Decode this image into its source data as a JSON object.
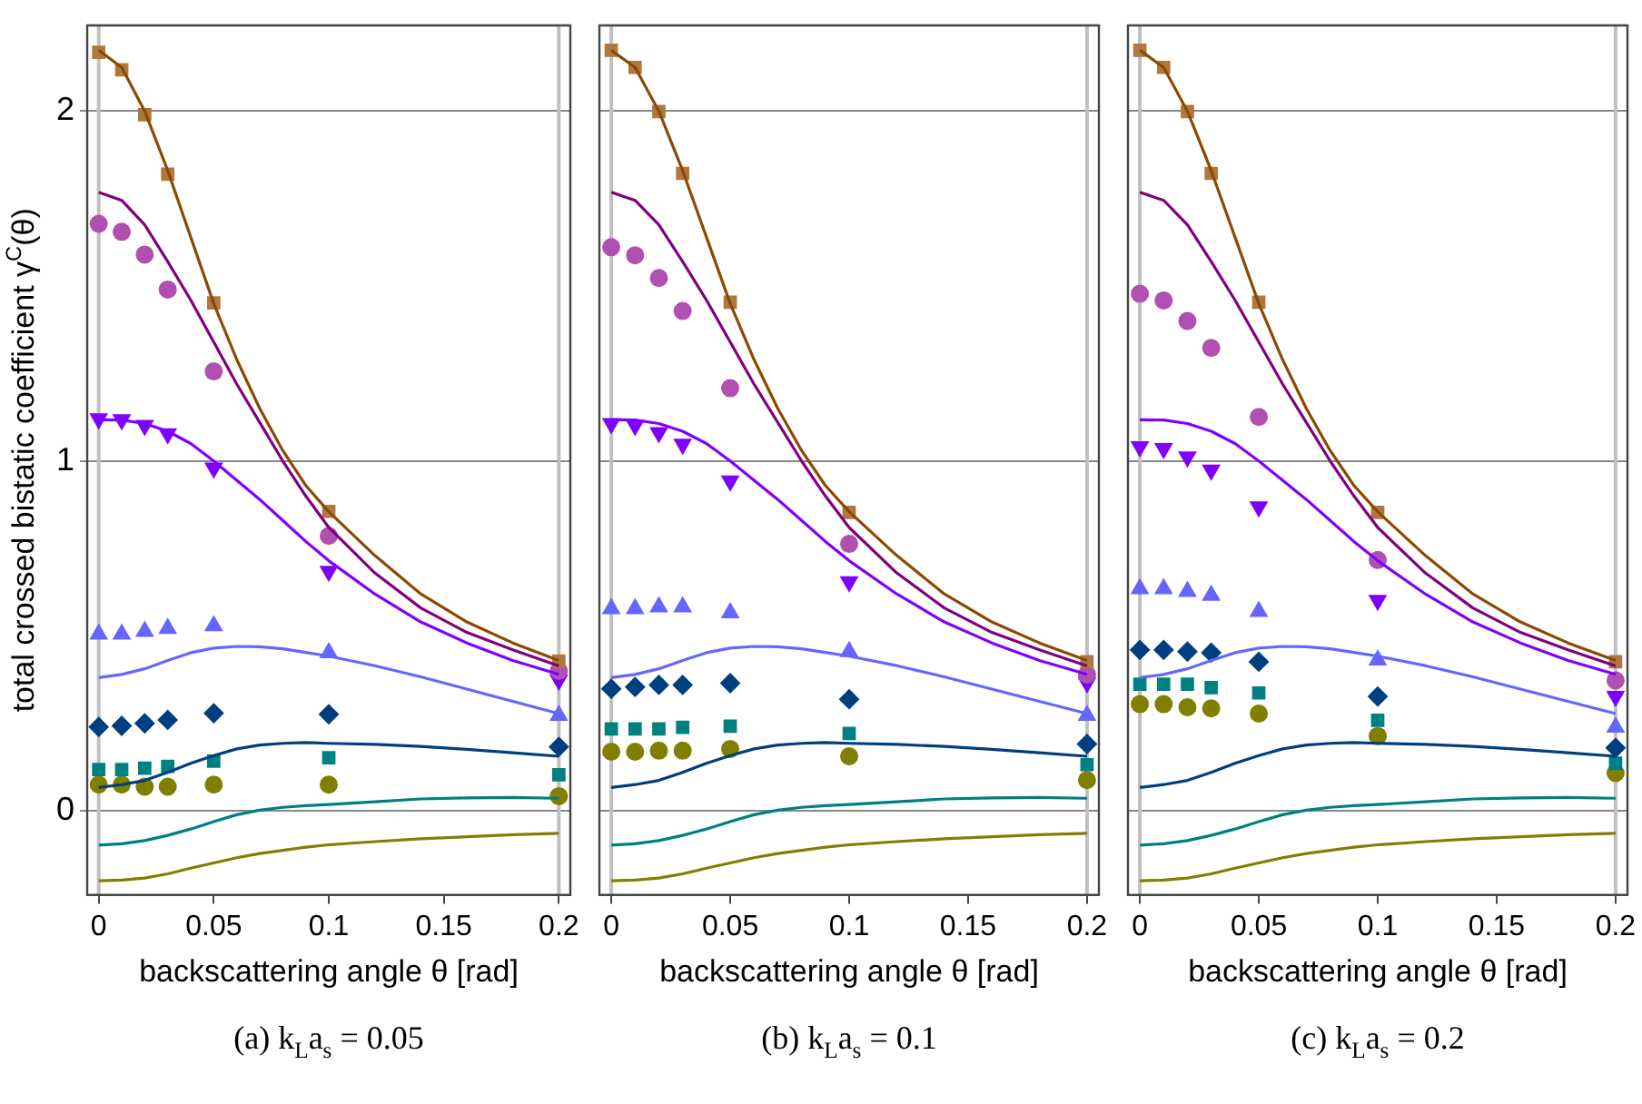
{
  "chart_data": [
    {
      "type": "line",
      "title": "(a) k$_{L}$a$_{s}$ = 0.05",
      "xlabel": "backscattering angle θ [rad]",
      "ylabel": "total crossed bistatic coefficient γ$^{C}$(θ)",
      "xlim": [
        -0.005,
        0.205
      ],
      "xticks": [
        0,
        0.05,
        0.1,
        0.15,
        0.2
      ],
      "ylim": [
        -0.24,
        2.245
      ],
      "yticks": [
        0,
        1,
        2
      ],
      "grid": "y",
      "legend": false,
      "ref_lines": [
        {
          "axis": "x",
          "value": 0,
          "color": "#c0c0c0"
        },
        {
          "axis": "x",
          "value": 0.2,
          "color": "#c0c0c0"
        }
      ],
      "series": [
        {
          "type": "line",
          "color": "#8b4a00",
          "marker": "none",
          "x": [
            0,
            0.01,
            0.02,
            0.03,
            0.04,
            0.05,
            0.06,
            0.07,
            0.08,
            0.09,
            0.1,
            0.12,
            0.14,
            0.16,
            0.18,
            0.2
          ],
          "values": [
            2.174,
            2.125,
            2.0,
            1.83,
            1.64,
            1.45,
            1.29,
            1.15,
            1.03,
            0.93,
            0.855,
            0.73,
            0.62,
            0.54,
            0.48,
            0.43
          ]
        },
        {
          "type": "line",
          "color": "#800080",
          "marker": "none",
          "x": [
            0,
            0.01,
            0.02,
            0.03,
            0.04,
            0.05,
            0.06,
            0.07,
            0.08,
            0.09,
            0.1,
            0.12,
            0.14,
            0.16,
            0.18,
            0.2
          ],
          "values": [
            1.768,
            1.745,
            1.675,
            1.57,
            1.46,
            1.34,
            1.22,
            1.11,
            1.0,
            0.9,
            0.81,
            0.68,
            0.58,
            0.51,
            0.46,
            0.414
          ]
        },
        {
          "type": "line",
          "color": "#8000ff",
          "marker": "none",
          "x": [
            0,
            0.01,
            0.02,
            0.03,
            0.04,
            0.05,
            0.06,
            0.07,
            0.08,
            0.09,
            0.1,
            0.12,
            0.14,
            0.16,
            0.18,
            0.2
          ],
          "values": [
            1.118,
            1.117,
            1.107,
            1.085,
            1.05,
            1.0,
            0.945,
            0.89,
            0.83,
            0.77,
            0.715,
            0.62,
            0.54,
            0.48,
            0.43,
            0.39
          ]
        },
        {
          "type": "line",
          "color": "#6666ff",
          "marker": "none",
          "x": [
            0,
            0.01,
            0.02,
            0.03,
            0.04,
            0.05,
            0.06,
            0.07,
            0.08,
            0.09,
            0.1,
            0.12,
            0.14,
            0.16,
            0.18,
            0.2
          ],
          "values": [
            0.381,
            0.39,
            0.406,
            0.43,
            0.452,
            0.465,
            0.47,
            0.469,
            0.463,
            0.453,
            0.442,
            0.415,
            0.383,
            0.348,
            0.313,
            0.278
          ]
        },
        {
          "type": "line",
          "color": "#003f7f",
          "marker": "none",
          "x": [
            0,
            0.01,
            0.02,
            0.03,
            0.04,
            0.05,
            0.06,
            0.07,
            0.08,
            0.09,
            0.1,
            0.12,
            0.14,
            0.16,
            0.18,
            0.2
          ],
          "values": [
            0.067,
            0.075,
            0.087,
            0.11,
            0.136,
            0.158,
            0.177,
            0.188,
            0.193,
            0.195,
            0.193,
            0.19,
            0.184,
            0.176,
            0.166,
            0.156
          ]
        },
        {
          "type": "line",
          "color": "#008080",
          "marker": "none",
          "x": [
            0,
            0.01,
            0.02,
            0.03,
            0.04,
            0.05,
            0.06,
            0.07,
            0.08,
            0.09,
            0.1,
            0.12,
            0.14,
            0.16,
            0.18,
            0.2
          ],
          "values": [
            -0.098,
            -0.094,
            -0.085,
            -0.07,
            -0.052,
            -0.031,
            -0.011,
            0.002,
            0.01,
            0.015,
            0.018,
            0.026,
            0.034,
            0.037,
            0.038,
            0.036
          ]
        },
        {
          "type": "line",
          "color": "#808000",
          "marker": "none",
          "x": [
            0,
            0.01,
            0.02,
            0.03,
            0.04,
            0.05,
            0.06,
            0.07,
            0.08,
            0.09,
            0.1,
            0.12,
            0.14,
            0.16,
            0.18,
            0.2
          ],
          "values": [
            -0.2,
            -0.198,
            -0.192,
            -0.18,
            -0.164,
            -0.149,
            -0.134,
            -0.122,
            -0.113,
            -0.104,
            -0.097,
            -0.088,
            -0.08,
            -0.074,
            -0.068,
            -0.064
          ]
        },
        {
          "type": "scatter",
          "color": "#b07840",
          "marker": "square",
          "x": [
            0,
            0.01,
            0.02,
            0.03,
            0.05,
            0.1,
            0.2
          ],
          "values": [
            2.168,
            2.118,
            1.99,
            1.82,
            1.452,
            0.856,
            0.428
          ]
        },
        {
          "type": "scatter",
          "color": "#b050b0",
          "marker": "circle",
          "x": [
            0,
            0.01,
            0.02,
            0.03,
            0.05,
            0.1,
            0.2
          ],
          "values": [
            1.678,
            1.655,
            1.59,
            1.49,
            1.256,
            0.786,
            0.4
          ]
        },
        {
          "type": "scatter",
          "color": "#8000ff",
          "marker": "triangle_down",
          "x": [
            0,
            0.01,
            0.02,
            0.03,
            0.05,
            0.1,
            0.2
          ],
          "values": [
            1.121,
            1.118,
            1.102,
            1.078,
            0.98,
            0.685,
            0.374
          ]
        },
        {
          "type": "scatter",
          "color": "#6666ff",
          "marker": "triangle",
          "x": [
            0,
            0.01,
            0.02,
            0.03,
            0.05,
            0.1,
            0.2
          ],
          "values": [
            0.505,
            0.505,
            0.513,
            0.521,
            0.529,
            0.452,
            0.273
          ]
        },
        {
          "type": "scatter",
          "color": "#003f7f",
          "marker": "diamond",
          "x": [
            0,
            0.01,
            0.02,
            0.03,
            0.05,
            0.1,
            0.2
          ],
          "values": [
            0.24,
            0.243,
            0.25,
            0.26,
            0.279,
            0.276,
            0.183
          ]
        },
        {
          "type": "scatter",
          "color": "#008080",
          "marker": "square",
          "x": [
            0,
            0.01,
            0.02,
            0.03,
            0.05,
            0.1,
            0.2
          ],
          "values": [
            0.118,
            0.118,
            0.122,
            0.127,
            0.142,
            0.152,
            0.103
          ]
        },
        {
          "type": "scatter",
          "color": "#808000",
          "marker": "circle",
          "x": [
            0,
            0.01,
            0.02,
            0.03,
            0.05,
            0.1,
            0.2
          ],
          "values": [
            0.075,
            0.075,
            0.069,
            0.069,
            0.075,
            0.075,
            0.042
          ]
        }
      ]
    },
    {
      "type": "line",
      "title": "(b) k$_{L}$a$_{s}$ = 0.1",
      "xlabel": "backscattering angle θ [rad]",
      "xlim": [
        -0.005,
        0.205
      ],
      "xticks": [
        0,
        0.05,
        0.1,
        0.15,
        0.2
      ],
      "ylim": [
        -0.24,
        2.245
      ],
      "yticks": [
        0,
        1,
        2
      ],
      "tick_labels": "x",
      "grid": "y",
      "legend": false,
      "ref_lines": [
        {
          "axis": "x",
          "value": 0,
          "color": "#c0c0c0"
        },
        {
          "axis": "x",
          "value": 0.2,
          "color": "#c0c0c0"
        }
      ],
      "series": [
        {
          "type": "line",
          "color": "#8b4a00",
          "marker": "none",
          "x": [
            0,
            0.01,
            0.02,
            0.03,
            0.04,
            0.05,
            0.06,
            0.07,
            0.08,
            0.09,
            0.1,
            0.12,
            0.14,
            0.16,
            0.18,
            0.2
          ],
          "values": [
            2.174,
            2.125,
            2.0,
            1.83,
            1.64,
            1.45,
            1.29,
            1.15,
            1.03,
            0.93,
            0.855,
            0.73,
            0.62,
            0.54,
            0.48,
            0.43
          ]
        },
        {
          "type": "line",
          "color": "#800080",
          "marker": "none",
          "x": [
            0,
            0.01,
            0.02,
            0.03,
            0.04,
            0.05,
            0.06,
            0.07,
            0.08,
            0.09,
            0.1,
            0.12,
            0.14,
            0.16,
            0.18,
            0.2
          ],
          "values": [
            1.768,
            1.745,
            1.675,
            1.57,
            1.46,
            1.34,
            1.22,
            1.11,
            1.0,
            0.9,
            0.81,
            0.68,
            0.58,
            0.51,
            0.46,
            0.414
          ]
        },
        {
          "type": "line",
          "color": "#8000ff",
          "marker": "none",
          "x": [
            0,
            0.01,
            0.02,
            0.03,
            0.04,
            0.05,
            0.06,
            0.07,
            0.08,
            0.09,
            0.1,
            0.12,
            0.14,
            0.16,
            0.18,
            0.2
          ],
          "values": [
            1.118,
            1.117,
            1.107,
            1.085,
            1.05,
            1.0,
            0.945,
            0.89,
            0.83,
            0.77,
            0.715,
            0.62,
            0.54,
            0.48,
            0.43,
            0.39
          ]
        },
        {
          "type": "line",
          "color": "#6666ff",
          "marker": "none",
          "x": [
            0,
            0.01,
            0.02,
            0.03,
            0.04,
            0.05,
            0.06,
            0.07,
            0.08,
            0.09,
            0.1,
            0.12,
            0.14,
            0.16,
            0.18,
            0.2
          ],
          "values": [
            0.381,
            0.39,
            0.406,
            0.43,
            0.452,
            0.465,
            0.47,
            0.469,
            0.463,
            0.453,
            0.442,
            0.415,
            0.383,
            0.348,
            0.313,
            0.278
          ]
        },
        {
          "type": "line",
          "color": "#003f7f",
          "marker": "none",
          "x": [
            0,
            0.01,
            0.02,
            0.03,
            0.04,
            0.05,
            0.06,
            0.07,
            0.08,
            0.09,
            0.1,
            0.12,
            0.14,
            0.16,
            0.18,
            0.2
          ],
          "values": [
            0.067,
            0.075,
            0.087,
            0.11,
            0.136,
            0.158,
            0.177,
            0.188,
            0.193,
            0.195,
            0.193,
            0.19,
            0.184,
            0.176,
            0.166,
            0.156
          ]
        },
        {
          "type": "line",
          "color": "#008080",
          "marker": "none",
          "x": [
            0,
            0.01,
            0.02,
            0.03,
            0.04,
            0.05,
            0.06,
            0.07,
            0.08,
            0.09,
            0.1,
            0.12,
            0.14,
            0.16,
            0.18,
            0.2
          ],
          "values": [
            -0.098,
            -0.094,
            -0.085,
            -0.07,
            -0.052,
            -0.031,
            -0.011,
            0.002,
            0.01,
            0.015,
            0.018,
            0.026,
            0.034,
            0.037,
            0.038,
            0.036
          ]
        },
        {
          "type": "line",
          "color": "#808000",
          "marker": "none",
          "x": [
            0,
            0.01,
            0.02,
            0.03,
            0.04,
            0.05,
            0.06,
            0.07,
            0.08,
            0.09,
            0.1,
            0.12,
            0.14,
            0.16,
            0.18,
            0.2
          ],
          "values": [
            -0.2,
            -0.198,
            -0.192,
            -0.18,
            -0.164,
            -0.149,
            -0.134,
            -0.122,
            -0.113,
            -0.104,
            -0.097,
            -0.088,
            -0.08,
            -0.074,
            -0.068,
            -0.064
          ]
        },
        {
          "type": "scatter",
          "color": "#b07840",
          "marker": "square",
          "x": [
            0,
            0.01,
            0.02,
            0.03,
            0.05,
            0.1,
            0.2
          ],
          "values": [
            2.174,
            2.125,
            1.999,
            1.822,
            1.454,
            0.853,
            0.426
          ]
        },
        {
          "type": "scatter",
          "color": "#b050b0",
          "marker": "circle",
          "x": [
            0,
            0.01,
            0.02,
            0.03,
            0.05,
            0.1,
            0.2
          ],
          "values": [
            1.611,
            1.588,
            1.523,
            1.429,
            1.208,
            0.763,
            0.39
          ]
        },
        {
          "type": "scatter",
          "color": "#8000ff",
          "marker": "triangle_down",
          "x": [
            0,
            0.01,
            0.02,
            0.03,
            0.05,
            0.1,
            0.2
          ],
          "values": [
            1.107,
            1.102,
            1.081,
            1.048,
            0.943,
            0.655,
            0.366
          ]
        },
        {
          "type": "scatter",
          "color": "#6666ff",
          "marker": "triangle",
          "x": [
            0,
            0.01,
            0.02,
            0.03,
            0.05,
            0.1,
            0.2
          ],
          "values": [
            0.578,
            0.578,
            0.583,
            0.583,
            0.566,
            0.455,
            0.273
          ]
        },
        {
          "type": "scatter",
          "color": "#003f7f",
          "marker": "diamond",
          "x": [
            0,
            0.01,
            0.02,
            0.03,
            0.05,
            0.1,
            0.2
          ],
          "values": [
            0.349,
            0.354,
            0.36,
            0.36,
            0.365,
            0.319,
            0.191
          ]
        },
        {
          "type": "scatter",
          "color": "#008080",
          "marker": "square",
          "x": [
            0,
            0.01,
            0.02,
            0.03,
            0.05,
            0.1,
            0.2
          ],
          "values": [
            0.234,
            0.234,
            0.234,
            0.239,
            0.242,
            0.221,
            0.132
          ]
        },
        {
          "type": "scatter",
          "color": "#808000",
          "marker": "circle",
          "x": [
            0,
            0.01,
            0.02,
            0.03,
            0.05,
            0.1,
            0.2
          ],
          "values": [
            0.169,
            0.169,
            0.172,
            0.172,
            0.177,
            0.156,
            0.088
          ]
        }
      ]
    },
    {
      "type": "line",
      "title": "(c) k$_{L}$a$_{s}$ = 0.2",
      "xlabel": "backscattering angle θ [rad]",
      "xlim": [
        -0.005,
        0.205
      ],
      "xticks": [
        0,
        0.05,
        0.1,
        0.15,
        0.2
      ],
      "ylim": [
        -0.24,
        2.245
      ],
      "yticks": [
        0,
        1,
        2
      ],
      "tick_labels": "x",
      "grid": "y",
      "legend": false,
      "ref_lines": [
        {
          "axis": "x",
          "value": 0,
          "color": "#c0c0c0"
        },
        {
          "axis": "x",
          "value": 0.2,
          "color": "#c0c0c0"
        }
      ],
      "series": [
        {
          "type": "line",
          "color": "#8b4a00",
          "marker": "none",
          "x": [
            0,
            0.01,
            0.02,
            0.03,
            0.04,
            0.05,
            0.06,
            0.07,
            0.08,
            0.09,
            0.1,
            0.12,
            0.14,
            0.16,
            0.18,
            0.2
          ],
          "values": [
            2.174,
            2.125,
            2.0,
            1.83,
            1.64,
            1.45,
            1.29,
            1.15,
            1.03,
            0.93,
            0.855,
            0.73,
            0.62,
            0.54,
            0.48,
            0.43
          ]
        },
        {
          "type": "line",
          "color": "#800080",
          "marker": "none",
          "x": [
            0,
            0.01,
            0.02,
            0.03,
            0.04,
            0.05,
            0.06,
            0.07,
            0.08,
            0.09,
            0.1,
            0.12,
            0.14,
            0.16,
            0.18,
            0.2
          ],
          "values": [
            1.768,
            1.745,
            1.675,
            1.57,
            1.46,
            1.34,
            1.22,
            1.11,
            1.0,
            0.9,
            0.81,
            0.68,
            0.58,
            0.51,
            0.46,
            0.414
          ]
        },
        {
          "type": "line",
          "color": "#8000ff",
          "marker": "none",
          "x": [
            0,
            0.01,
            0.02,
            0.03,
            0.04,
            0.05,
            0.06,
            0.07,
            0.08,
            0.09,
            0.1,
            0.12,
            0.14,
            0.16,
            0.18,
            0.2
          ],
          "values": [
            1.118,
            1.117,
            1.107,
            1.085,
            1.05,
            1.0,
            0.945,
            0.89,
            0.83,
            0.77,
            0.715,
            0.62,
            0.54,
            0.48,
            0.43,
            0.39
          ]
        },
        {
          "type": "line",
          "color": "#6666ff",
          "marker": "none",
          "x": [
            0,
            0.01,
            0.02,
            0.03,
            0.04,
            0.05,
            0.06,
            0.07,
            0.08,
            0.09,
            0.1,
            0.12,
            0.14,
            0.16,
            0.18,
            0.2
          ],
          "values": [
            0.381,
            0.39,
            0.406,
            0.43,
            0.452,
            0.465,
            0.47,
            0.469,
            0.463,
            0.453,
            0.442,
            0.415,
            0.383,
            0.348,
            0.313,
            0.278
          ]
        },
        {
          "type": "line",
          "color": "#003f7f",
          "marker": "none",
          "x": [
            0,
            0.01,
            0.02,
            0.03,
            0.04,
            0.05,
            0.06,
            0.07,
            0.08,
            0.09,
            0.1,
            0.12,
            0.14,
            0.16,
            0.18,
            0.2
          ],
          "values": [
            0.067,
            0.075,
            0.087,
            0.11,
            0.136,
            0.158,
            0.177,
            0.188,
            0.193,
            0.195,
            0.193,
            0.19,
            0.184,
            0.176,
            0.166,
            0.156
          ]
        },
        {
          "type": "line",
          "color": "#008080",
          "marker": "none",
          "x": [
            0,
            0.01,
            0.02,
            0.03,
            0.04,
            0.05,
            0.06,
            0.07,
            0.08,
            0.09,
            0.1,
            0.12,
            0.14,
            0.16,
            0.18,
            0.2
          ],
          "values": [
            -0.098,
            -0.094,
            -0.085,
            -0.07,
            -0.052,
            -0.031,
            -0.011,
            0.002,
            0.01,
            0.015,
            0.018,
            0.026,
            0.034,
            0.037,
            0.038,
            0.036
          ]
        },
        {
          "type": "line",
          "color": "#808000",
          "marker": "none",
          "x": [
            0,
            0.01,
            0.02,
            0.03,
            0.04,
            0.05,
            0.06,
            0.07,
            0.08,
            0.09,
            0.1,
            0.12,
            0.14,
            0.16,
            0.18,
            0.2
          ],
          "values": [
            -0.2,
            -0.198,
            -0.192,
            -0.18,
            -0.164,
            -0.149,
            -0.134,
            -0.122,
            -0.113,
            -0.104,
            -0.097,
            -0.088,
            -0.08,
            -0.074,
            -0.068,
            -0.064
          ]
        },
        {
          "type": "scatter",
          "color": "#b07840",
          "marker": "square",
          "x": [
            0,
            0.01,
            0.02,
            0.03,
            0.05,
            0.1,
            0.2
          ],
          "values": [
            2.174,
            2.125,
            1.999,
            1.822,
            1.454,
            0.853,
            0.426
          ]
        },
        {
          "type": "scatter",
          "color": "#b050b0",
          "marker": "circle",
          "x": [
            0,
            0.01,
            0.02,
            0.03,
            0.05,
            0.1,
            0.2
          ],
          "values": [
            1.478,
            1.459,
            1.4,
            1.323,
            1.126,
            0.717,
            0.373
          ]
        },
        {
          "type": "scatter",
          "color": "#8000ff",
          "marker": "triangle_down",
          "x": [
            0,
            0.01,
            0.02,
            0.03,
            0.05,
            0.1,
            0.2
          ],
          "values": [
            1.041,
            1.036,
            1.012,
            0.974,
            0.869,
            0.602,
            0.327
          ]
        },
        {
          "type": "scatter",
          "color": "#6666ff",
          "marker": "triangle",
          "x": [
            0,
            0.01,
            0.02,
            0.03,
            0.05,
            0.1,
            0.2
          ],
          "values": [
            0.635,
            0.635,
            0.627,
            0.616,
            0.57,
            0.431,
            0.239
          ]
        },
        {
          "type": "scatter",
          "color": "#003f7f",
          "marker": "diamond",
          "x": [
            0,
            0.01,
            0.02,
            0.03,
            0.05,
            0.1,
            0.2
          ],
          "values": [
            0.46,
            0.46,
            0.455,
            0.452,
            0.426,
            0.327,
            0.18
          ]
        },
        {
          "type": "scatter",
          "color": "#008080",
          "marker": "square",
          "x": [
            0,
            0.01,
            0.02,
            0.03,
            0.05,
            0.1,
            0.2
          ],
          "values": [
            0.362,
            0.362,
            0.362,
            0.352,
            0.337,
            0.259,
            0.136
          ]
        },
        {
          "type": "scatter",
          "color": "#808000",
          "marker": "circle",
          "x": [
            0,
            0.01,
            0.02,
            0.03,
            0.05,
            0.1,
            0.2
          ],
          "values": [
            0.305,
            0.305,
            0.296,
            0.293,
            0.278,
            0.214,
            0.108
          ]
        }
      ]
    }
  ]
}
